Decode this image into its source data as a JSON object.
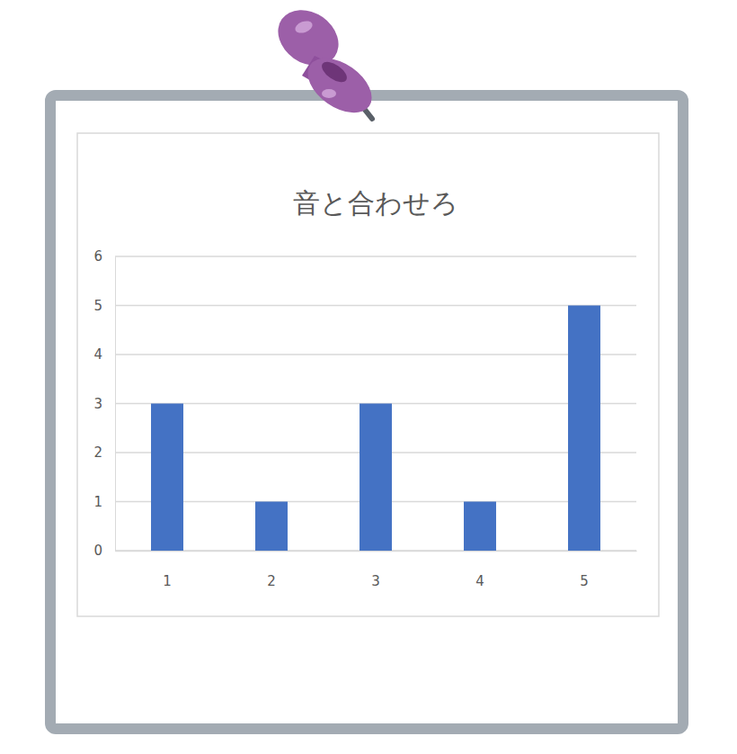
{
  "chart_data": {
    "type": "bar",
    "title": "音と合わせろ",
    "categories": [
      "1",
      "2",
      "3",
      "4",
      "5"
    ],
    "values": [
      3,
      1,
      3,
      1,
      5
    ],
    "color": "#4472c4",
    "ylim": [
      0,
      6
    ],
    "yticks": [
      0,
      1,
      2,
      3,
      4,
      5,
      6
    ],
    "grid": true
  }
}
